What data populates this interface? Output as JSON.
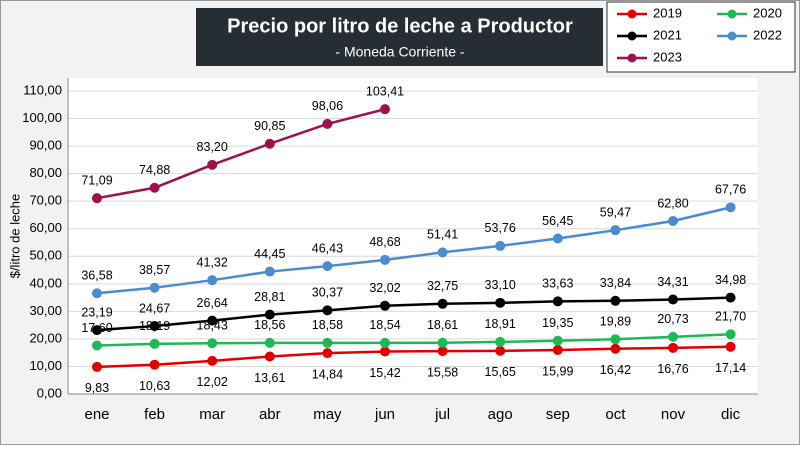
{
  "chart_data": {
    "type": "line",
    "title": "Precio por litro de leche a Productor",
    "subtitle": "- Moneda Corriente -",
    "y_label": "$/litro de leche",
    "categories": [
      "ene",
      "feb",
      "mar",
      "abr",
      "may",
      "jun",
      "jul",
      "ago",
      "sep",
      "oct",
      "nov",
      "dic"
    ],
    "ylim": [
      0,
      110
    ],
    "yticks": [
      {
        "value": 0,
        "label": "0,00"
      },
      {
        "value": 10,
        "label": "10,00"
      },
      {
        "value": 20,
        "label": "20,00"
      },
      {
        "value": 30,
        "label": "30,00"
      },
      {
        "value": 40,
        "label": "40,00"
      },
      {
        "value": 50,
        "label": "50,00"
      },
      {
        "value": 60,
        "label": "60,00"
      },
      {
        "value": 70,
        "label": "70,00"
      },
      {
        "value": 80,
        "label": "80,00"
      },
      {
        "value": 90,
        "label": "90,00"
      },
      {
        "value": 100,
        "label": "100,00"
      },
      {
        "value": 110,
        "label": "110,00"
      }
    ],
    "grid": true,
    "legend": "top-right",
    "series": [
      {
        "name": "2019",
        "color": "#e00000",
        "values": [
          9.83,
          10.63,
          12.02,
          13.61,
          14.84,
          15.42,
          15.58,
          15.65,
          15.99,
          16.42,
          16.76,
          17.14
        ],
        "value_labels": [
          "9,83",
          "10,63",
          "12,02",
          "13,61",
          "14,84",
          "15,42",
          "15,58",
          "15,65",
          "15,99",
          "16,42",
          "16,76",
          "17,14"
        ]
      },
      {
        "name": "2020",
        "color": "#1db954",
        "values": [
          17.6,
          18.19,
          18.43,
          18.56,
          18.58,
          18.54,
          18.61,
          18.91,
          19.35,
          19.89,
          20.73,
          21.7
        ],
        "value_labels": [
          "17,60",
          "18,19",
          "18,43",
          "18,56",
          "18,58",
          "18,54",
          "18,61",
          "18,91",
          "19,35",
          "19,89",
          "20,73",
          "21,70"
        ]
      },
      {
        "name": "2021",
        "color": "#000000",
        "values": [
          23.19,
          24.67,
          26.64,
          28.81,
          30.37,
          32.02,
          32.75,
          33.1,
          33.63,
          33.84,
          34.31,
          34.98
        ],
        "value_labels": [
          "23,19",
          "24,67",
          "26,64",
          "28,81",
          "30,37",
          "32,02",
          "32,75",
          "33,10",
          "33,63",
          "33,84",
          "34,31",
          "34,98"
        ]
      },
      {
        "name": "2022",
        "color": "#4a8ccc",
        "values": [
          36.58,
          38.57,
          41.32,
          44.45,
          46.43,
          48.68,
          51.41,
          53.76,
          56.45,
          59.47,
          62.8,
          67.76
        ],
        "value_labels": [
          "36,58",
          "38,57",
          "41,32",
          "44,45",
          "46,43",
          "48,68",
          "51,41",
          "53,76",
          "56,45",
          "59,47",
          "62,80",
          "67,76"
        ]
      },
      {
        "name": "2023",
        "color": "#a0104a",
        "values": [
          71.09,
          74.88,
          83.2,
          90.85,
          98.06,
          103.41,
          null,
          null,
          null,
          null,
          null,
          null
        ],
        "value_labels": [
          "71,09",
          "74,88",
          "83,20",
          "90,85",
          "98,06",
          "103,41",
          null,
          null,
          null,
          null,
          null,
          null
        ]
      }
    ]
  }
}
